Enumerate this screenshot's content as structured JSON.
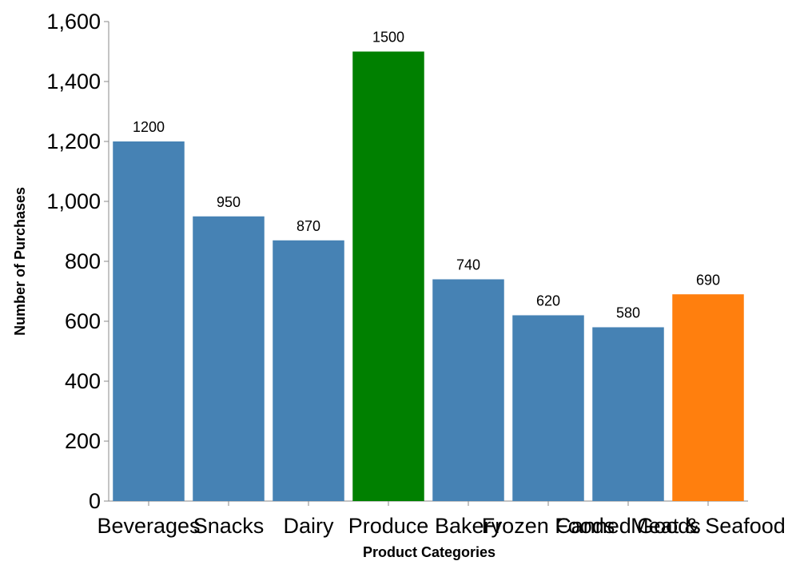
{
  "chart_data": {
    "type": "bar",
    "title": "",
    "xlabel": "Product Categories",
    "ylabel": "Number of Purchases",
    "categories": [
      "Beverages",
      "Snacks",
      "Dairy",
      "Produce",
      "Bakery",
      "Frozen Foods",
      "Canned Goods",
      "Meat & Seafood"
    ],
    "values": [
      1200,
      950,
      870,
      1500,
      740,
      620,
      580,
      690
    ],
    "colors": [
      "#4682b4",
      "#4682b4",
      "#4682b4",
      "#008000",
      "#4682b4",
      "#4682b4",
      "#4682b4",
      "#ff7f0e"
    ],
    "ylim": [
      0,
      1600
    ],
    "yticks": [
      0,
      200,
      400,
      600,
      800,
      1000,
      1200,
      1400,
      1600
    ],
    "ytick_labels": [
      "0",
      "200",
      "400",
      "600",
      "800",
      "1,000",
      "1,200",
      "1,400",
      "1,600"
    ],
    "grid": false,
    "data_labels": true
  }
}
